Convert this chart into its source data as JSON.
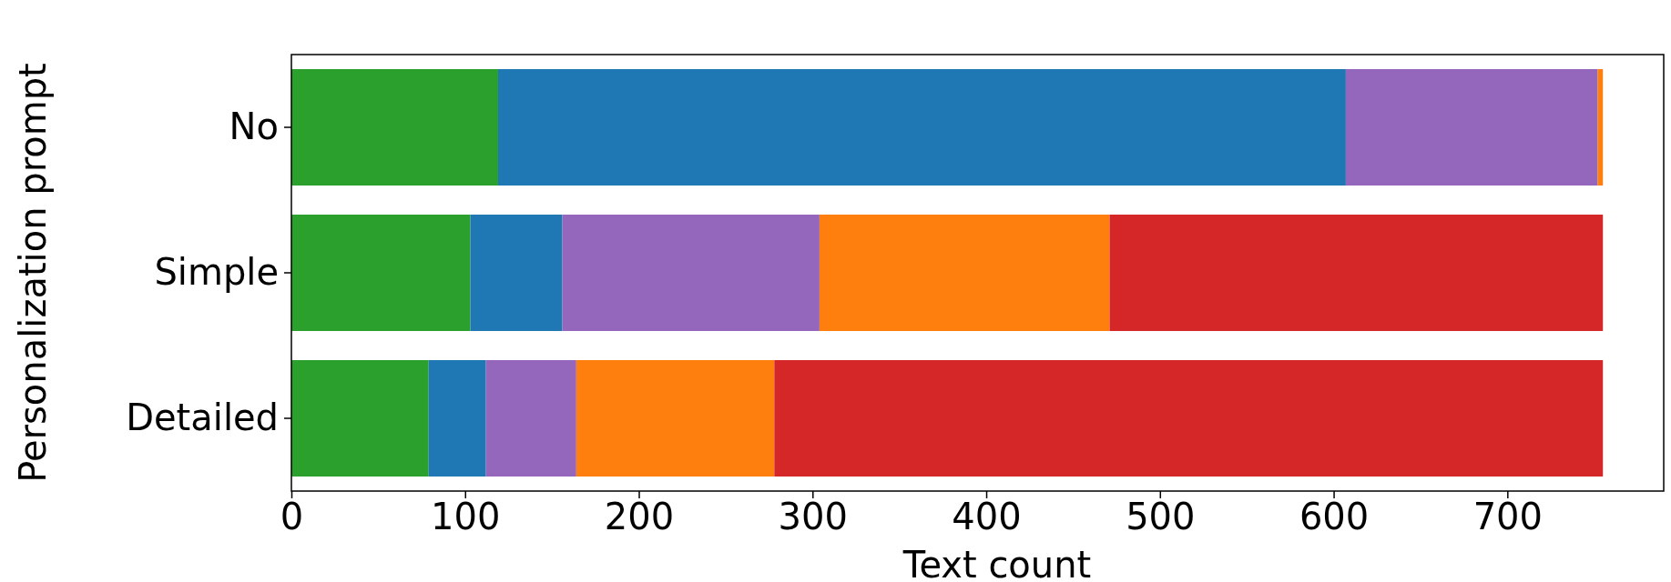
{
  "chart_data": {
    "type": "bar",
    "orientation": "horizontal",
    "stacked": true,
    "xlabel": "Text count",
    "ylabel": "Personalization prompt",
    "categories": [
      "No",
      "Simple",
      "Detailed"
    ],
    "series": [
      {
        "color": "#2ca02c",
        "values": [
          119,
          103,
          79
        ]
      },
      {
        "color": "#1f77b4",
        "values": [
          488,
          53,
          33
        ]
      },
      {
        "color": "#9467bd",
        "values": [
          145,
          148,
          52
        ]
      },
      {
        "color": "#ff7f0e",
        "values": [
          3,
          167,
          114
        ]
      },
      {
        "color": "#d62728",
        "values": [
          null,
          284,
          477
        ]
      }
    ],
    "xlim": [
      0,
      790
    ],
    "xticks": [
      0,
      100,
      200,
      300,
      400,
      500,
      600,
      700
    ]
  }
}
